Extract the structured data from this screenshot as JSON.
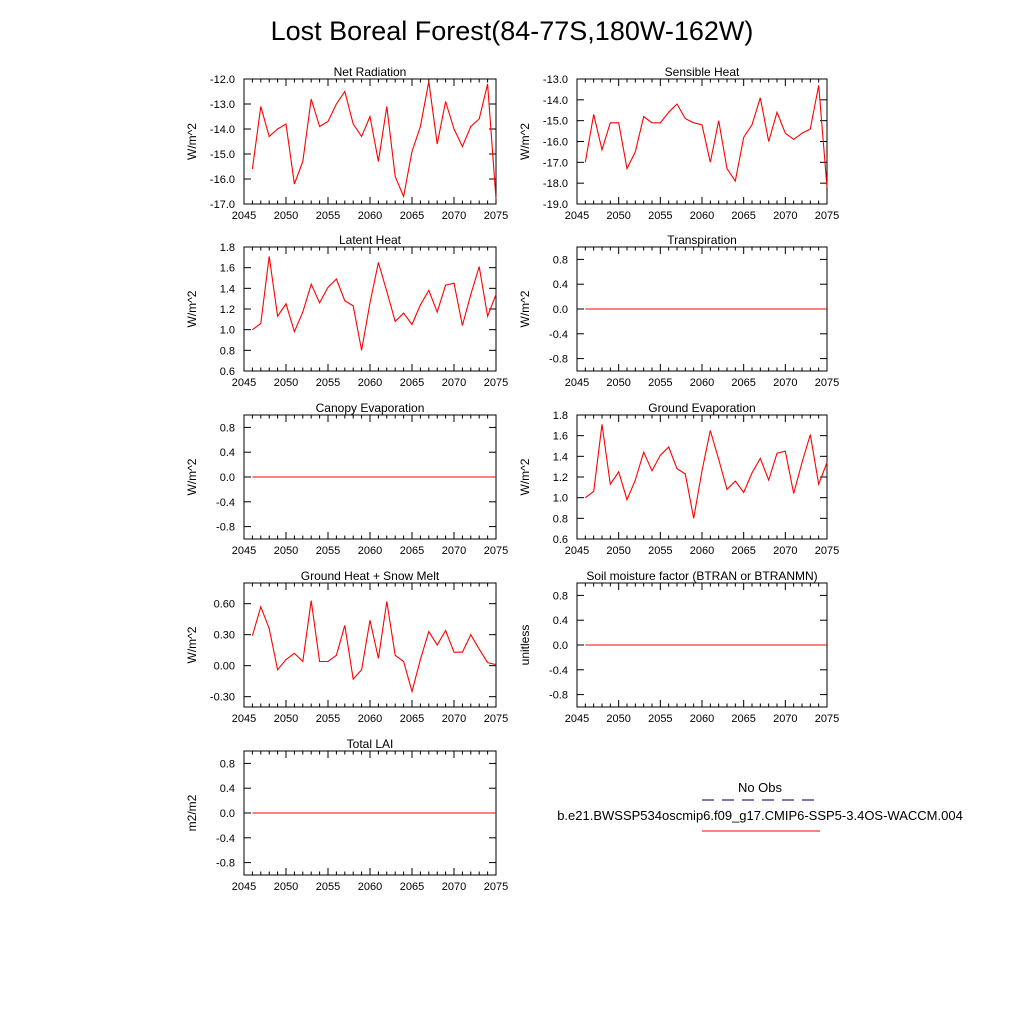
{
  "title": "Lost Boreal Forest(84-77S,180W-162W)",
  "legend": {
    "obs_label": "No Obs",
    "model_label": "b.e21.BWSSP534oscmip6.f09_g17.CMIP6-SSP5-3.4OS-WACCM.004",
    "obs_color": "#2b2b8a",
    "model_color": "#ff0000"
  },
  "chart_data": [
    {
      "type": "line",
      "title": "Net Radiation",
      "ylabel": "W/m^2",
      "xlim": [
        2045,
        2075
      ],
      "ylim": [
        -17.0,
        -12.0
      ],
      "yticks": [
        -17.0,
        -16.0,
        -15.0,
        -14.0,
        -13.0,
        -12.0
      ],
      "ytick_labels": [
        "-17.0",
        "-16.0",
        "-15.0",
        "-14.0",
        "-13.0",
        "-12.0"
      ],
      "xticks": [
        2045,
        2050,
        2055,
        2060,
        2065,
        2070,
        2075
      ],
      "xtick_labels": [
        "2045",
        "2050",
        "2055",
        "2060",
        "2065",
        "2070",
        "2075"
      ],
      "x": [
        2046,
        2047,
        2048,
        2049,
        2050,
        2051,
        2052,
        2053,
        2054,
        2055,
        2056,
        2057,
        2058,
        2059,
        2060,
        2061,
        2062,
        2063,
        2064,
        2065,
        2066,
        2067,
        2068,
        2069,
        2070,
        2071,
        2072,
        2073,
        2074,
        2075
      ],
      "series": [
        {
          "name": "b.e21.BWSSP534oscmip6.f09_g17.CMIP6-SSP5-3.4OS-WACCM.004",
          "color": "#ff0000",
          "values": [
            -15.6,
            -13.1,
            -14.3,
            -14.0,
            -13.8,
            -16.2,
            -15.3,
            -12.8,
            -13.9,
            -13.7,
            -13.0,
            -12.5,
            -13.8,
            -14.3,
            -13.5,
            -15.3,
            -13.1,
            -15.9,
            -16.7,
            -14.9,
            -13.9,
            -12.1,
            -14.6,
            -12.9,
            -14.0,
            -14.7,
            -13.9,
            -13.6,
            -12.2,
            -16.8
          ]
        }
      ]
    },
    {
      "type": "line",
      "title": "Sensible Heat",
      "ylabel": "W/m^2",
      "xlim": [
        2045,
        2075
      ],
      "ylim": [
        -19.0,
        -13.0
      ],
      "yticks": [
        -19.0,
        -18.0,
        -17.0,
        -16.0,
        -15.0,
        -14.0,
        -13.0
      ],
      "ytick_labels": [
        "-19.0",
        "-18.0",
        "-17.0",
        "-16.0",
        "-15.0",
        "-14.0",
        "-13.0"
      ],
      "xticks": [
        2045,
        2050,
        2055,
        2060,
        2065,
        2070,
        2075
      ],
      "xtick_labels": [
        "2045",
        "2050",
        "2055",
        "2060",
        "2065",
        "2070",
        "2075"
      ],
      "x": [
        2046,
        2047,
        2048,
        2049,
        2050,
        2051,
        2052,
        2053,
        2054,
        2055,
        2056,
        2057,
        2058,
        2059,
        2060,
        2061,
        2062,
        2063,
        2064,
        2065,
        2066,
        2067,
        2068,
        2069,
        2070,
        2071,
        2072,
        2073,
        2074,
        2075
      ],
      "series": [
        {
          "name": "b.e21.BWSSP534oscmip6.f09_g17.CMIP6-SSP5-3.4OS-WACCM.004",
          "color": "#ff0000",
          "values": [
            -17.0,
            -14.7,
            -16.4,
            -15.1,
            -15.1,
            -17.3,
            -16.5,
            -14.8,
            -15.1,
            -15.1,
            -14.6,
            -14.2,
            -14.9,
            -15.1,
            -15.2,
            -17.0,
            -15.0,
            -17.3,
            -17.9,
            -15.8,
            -15.2,
            -13.9,
            -16.0,
            -14.6,
            -15.6,
            -15.9,
            -15.6,
            -15.4,
            -13.3,
            -18.2
          ]
        }
      ]
    },
    {
      "type": "line",
      "title": "Latent Heat",
      "ylabel": "W/m^2",
      "xlim": [
        2045,
        2075
      ],
      "ylim": [
        0.6,
        1.8
      ],
      "yticks": [
        0.6,
        0.8,
        1.0,
        1.2,
        1.4,
        1.6,
        1.8
      ],
      "ytick_labels": [
        "0.6",
        "0.8",
        "1.0",
        "1.2",
        "1.4",
        "1.6",
        "1.8"
      ],
      "xticks": [
        2045,
        2050,
        2055,
        2060,
        2065,
        2070,
        2075
      ],
      "xtick_labels": [
        "2045",
        "2050",
        "2055",
        "2060",
        "2065",
        "2070",
        "2075"
      ],
      "x": [
        2046,
        2047,
        2048,
        2049,
        2050,
        2051,
        2052,
        2053,
        2054,
        2055,
        2056,
        2057,
        2058,
        2059,
        2060,
        2061,
        2062,
        2063,
        2064,
        2065,
        2066,
        2067,
        2068,
        2069,
        2070,
        2071,
        2072,
        2073,
        2074,
        2075
      ],
      "series": [
        {
          "name": "b.e21.BWSSP534oscmip6.f09_g17.CMIP6-SSP5-3.4OS-WACCM.004",
          "color": "#ff0000",
          "values": [
            1.0,
            1.06,
            1.71,
            1.13,
            1.25,
            0.98,
            1.17,
            1.44,
            1.26,
            1.41,
            1.49,
            1.28,
            1.23,
            0.8,
            1.26,
            1.65,
            1.37,
            1.08,
            1.16,
            1.05,
            1.24,
            1.38,
            1.17,
            1.43,
            1.45,
            1.04,
            1.34,
            1.61,
            1.13,
            1.34
          ]
        }
      ]
    },
    {
      "type": "line",
      "title": "Transpiration",
      "ylabel": "W/m^2",
      "xlim": [
        2045,
        2075
      ],
      "ylim": [
        -1.0,
        1.0
      ],
      "yticks": [
        -0.8,
        -0.4,
        0.0,
        0.4,
        0.8
      ],
      "ytick_labels": [
        "-0.8",
        "-0.4",
        "0.0",
        "0.4",
        "0.8"
      ],
      "xticks": [
        2045,
        2050,
        2055,
        2060,
        2065,
        2070,
        2075
      ],
      "xtick_labels": [
        "2045",
        "2050",
        "2055",
        "2060",
        "2065",
        "2070",
        "2075"
      ],
      "x": [
        2046,
        2075
      ],
      "series": [
        {
          "name": "b.e21.BWSSP534oscmip6.f09_g17.CMIP6-SSP5-3.4OS-WACCM.004",
          "color": "#ff0000",
          "values": [
            0.0,
            0.0
          ]
        }
      ]
    },
    {
      "type": "line",
      "title": "Canopy Evaporation",
      "ylabel": "W/m^2",
      "xlim": [
        2045,
        2075
      ],
      "ylim": [
        -1.0,
        1.0
      ],
      "yticks": [
        -0.8,
        -0.4,
        0.0,
        0.4,
        0.8
      ],
      "ytick_labels": [
        "-0.8",
        "-0.4",
        "0.0",
        "0.4",
        "0.8"
      ],
      "xticks": [
        2045,
        2050,
        2055,
        2060,
        2065,
        2070,
        2075
      ],
      "xtick_labels": [
        "2045",
        "2050",
        "2055",
        "2060",
        "2065",
        "2070",
        "2075"
      ],
      "x": [
        2046,
        2075
      ],
      "series": [
        {
          "name": "b.e21.BWSSP534oscmip6.f09_g17.CMIP6-SSP5-3.4OS-WACCM.004",
          "color": "#ff0000",
          "values": [
            0.0,
            0.0
          ]
        }
      ]
    },
    {
      "type": "line",
      "title": "Ground Evaporation",
      "ylabel": "W/m^2",
      "xlim": [
        2045,
        2075
      ],
      "ylim": [
        0.6,
        1.8
      ],
      "yticks": [
        0.6,
        0.8,
        1.0,
        1.2,
        1.4,
        1.6,
        1.8
      ],
      "ytick_labels": [
        "0.6",
        "0.8",
        "1.0",
        "1.2",
        "1.4",
        "1.6",
        "1.8"
      ],
      "xticks": [
        2045,
        2050,
        2055,
        2060,
        2065,
        2070,
        2075
      ],
      "xtick_labels": [
        "2045",
        "2050",
        "2055",
        "2060",
        "2065",
        "2070",
        "2075"
      ],
      "x": [
        2046,
        2047,
        2048,
        2049,
        2050,
        2051,
        2052,
        2053,
        2054,
        2055,
        2056,
        2057,
        2058,
        2059,
        2060,
        2061,
        2062,
        2063,
        2064,
        2065,
        2066,
        2067,
        2068,
        2069,
        2070,
        2071,
        2072,
        2073,
        2074,
        2075
      ],
      "series": [
        {
          "name": "b.e21.BWSSP534oscmip6.f09_g17.CMIP6-SSP5-3.4OS-WACCM.004",
          "color": "#ff0000",
          "values": [
            1.0,
            1.06,
            1.71,
            1.13,
            1.25,
            0.98,
            1.17,
            1.44,
            1.26,
            1.41,
            1.49,
            1.28,
            1.23,
            0.8,
            1.26,
            1.65,
            1.37,
            1.08,
            1.16,
            1.05,
            1.24,
            1.38,
            1.17,
            1.43,
            1.45,
            1.04,
            1.34,
            1.61,
            1.13,
            1.34
          ]
        }
      ]
    },
    {
      "type": "line",
      "title": "Ground Heat + Snow Melt",
      "ylabel": "W/m^2",
      "xlim": [
        2045,
        2075
      ],
      "ylim": [
        -0.4,
        0.8
      ],
      "yticks": [
        -0.3,
        0.0,
        0.3,
        0.6
      ],
      "ytick_labels": [
        "-0.30",
        "0.00",
        "0.30",
        "0.60"
      ],
      "xticks": [
        2045,
        2050,
        2055,
        2060,
        2065,
        2070,
        2075
      ],
      "xtick_labels": [
        "2045",
        "2050",
        "2055",
        "2060",
        "2065",
        "2070",
        "2075"
      ],
      "x": [
        2046,
        2047,
        2048,
        2049,
        2050,
        2051,
        2052,
        2053,
        2054,
        2055,
        2056,
        2057,
        2058,
        2059,
        2060,
        2061,
        2062,
        2063,
        2064,
        2065,
        2066,
        2067,
        2068,
        2069,
        2070,
        2071,
        2072,
        2073,
        2074,
        2075
      ],
      "series": [
        {
          "name": "b.e21.BWSSP534oscmip6.f09_g17.CMIP6-SSP5-3.4OS-WACCM.004",
          "color": "#ff0000",
          "values": [
            0.29,
            0.57,
            0.36,
            -0.04,
            0.06,
            0.12,
            0.04,
            0.63,
            0.04,
            0.04,
            0.1,
            0.39,
            -0.13,
            -0.04,
            0.44,
            0.07,
            0.62,
            0.1,
            0.04,
            -0.25,
            0.06,
            0.33,
            0.2,
            0.34,
            0.13,
            0.13,
            0.3,
            0.16,
            0.03,
            0.01
          ]
        }
      ]
    },
    {
      "type": "line",
      "title": "Soil moisture factor (BTRAN or BTRANMN)",
      "ylabel": "unitless",
      "xlim": [
        2045,
        2075
      ],
      "ylim": [
        -1.0,
        1.0
      ],
      "yticks": [
        -0.8,
        -0.4,
        0.0,
        0.4,
        0.8
      ],
      "ytick_labels": [
        "-0.8",
        "-0.4",
        "0.0",
        "0.4",
        "0.8"
      ],
      "xticks": [
        2045,
        2050,
        2055,
        2060,
        2065,
        2070,
        2075
      ],
      "xtick_labels": [
        "2045",
        "2050",
        "2055",
        "2060",
        "2065",
        "2070",
        "2075"
      ],
      "x": [
        2046,
        2075
      ],
      "series": [
        {
          "name": "b.e21.BWSSP534oscmip6.f09_g17.CMIP6-SSP5-3.4OS-WACCM.004",
          "color": "#ff0000",
          "values": [
            0.0,
            0.0
          ]
        }
      ]
    },
    {
      "type": "line",
      "title": "Total LAI",
      "ylabel": "m2/m2",
      "xlim": [
        2045,
        2075
      ],
      "ylim": [
        -1.0,
        1.0
      ],
      "yticks": [
        -0.8,
        -0.4,
        0.0,
        0.4,
        0.8
      ],
      "ytick_labels": [
        "-0.8",
        "-0.4",
        "0.0",
        "0.4",
        "0.8"
      ],
      "xticks": [
        2045,
        2050,
        2055,
        2060,
        2065,
        2070,
        2075
      ],
      "xtick_labels": [
        "2045",
        "2050",
        "2055",
        "2060",
        "2065",
        "2070",
        "2075"
      ],
      "x": [
        2046,
        2075
      ],
      "series": [
        {
          "name": "b.e21.BWSSP534oscmip6.f09_g17.CMIP6-SSP5-3.4OS-WACCM.004",
          "color": "#ff0000",
          "values": [
            0.0,
            0.0
          ]
        }
      ]
    }
  ]
}
